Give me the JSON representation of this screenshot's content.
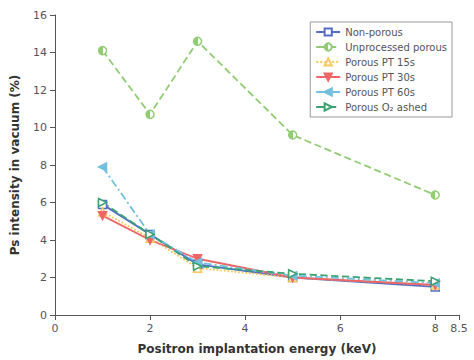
{
  "chart_data": {
    "type": "line",
    "xlabel": "Positron implantation energy (keV)",
    "ylabel": "Ps intensity in vacuum (%)",
    "x": [
      1,
      2,
      3,
      5,
      8
    ],
    "series": [
      {
        "name": "Non-porous",
        "values": [
          5.9,
          4.3,
          2.7,
          2.0,
          1.5
        ],
        "marker": "hollow-square",
        "line_style": "solid"
      },
      {
        "name": "Unprocessed porous",
        "values": [
          14.1,
          10.7,
          14.6,
          9.6,
          6.4
        ],
        "marker": "half-circle",
        "line_style": "dashed"
      },
      {
        "name": "Porous PT 15s",
        "values": [
          5.5,
          4.1,
          2.5,
          2.0,
          1.6
        ],
        "marker": "hollow-triangle-up",
        "line_style": "dotted"
      },
      {
        "name": "Porous PT 30s",
        "values": [
          5.3,
          4.0,
          3.0,
          2.0,
          1.6
        ],
        "marker": "filled-triangle-down",
        "line_style": "solid"
      },
      {
        "name": "Porous PT 60s",
        "values": [
          7.9,
          4.3,
          2.8,
          2.1,
          1.7
        ],
        "marker": "filled-triangle-left",
        "line_style": "dashdot"
      },
      {
        "name": "Porous O₂ ashed",
        "values": [
          6.0,
          4.3,
          2.6,
          2.2,
          1.8
        ],
        "marker": "hollow-triangle-right",
        "line_style": "dashed"
      }
    ],
    "xlim": [
      0,
      8.5
    ],
    "ylim": [
      0,
      16
    ],
    "xticks": [
      0,
      2,
      4,
      6,
      8
    ],
    "yticks": [
      0,
      2,
      4,
      6,
      8,
      10,
      12,
      14,
      16
    ],
    "grid": false,
    "legend": "upper right"
  }
}
